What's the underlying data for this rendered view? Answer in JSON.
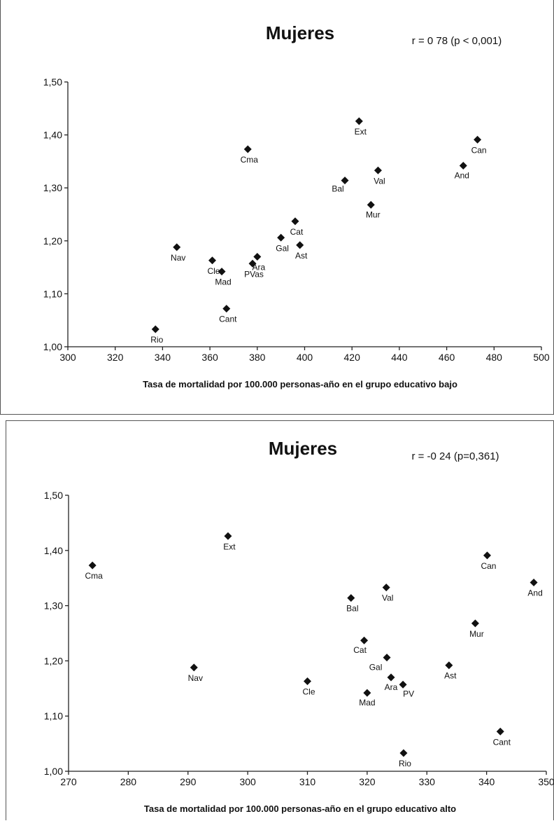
{
  "chart_data": [
    {
      "type": "scatter",
      "title": "Mujeres",
      "annotation": "r = 0 78 (p < 0,001)",
      "xlabel": "Tasa de mortalidad por 100.000 personas-año en el grupo educativo bajo",
      "ylabel": "",
      "xlim": [
        300,
        500
      ],
      "ylim": [
        1.0,
        1.5
      ],
      "x_ticks": [
        "300",
        "320",
        "340",
        "360",
        "380",
        "400",
        "420",
        "440",
        "460",
        "480",
        "500"
      ],
      "y_ticks": [
        "1,00",
        "1,10",
        "1,20",
        "1,30",
        "1,40",
        "1,50"
      ],
      "grid": false,
      "marker": "diamond",
      "points": [
        {
          "label": "Rio",
          "x": 337,
          "y": 1.033
        },
        {
          "label": "Nav",
          "x": 346,
          "y": 1.188
        },
        {
          "label": "Cle",
          "x": 361,
          "y": 1.163
        },
        {
          "label": "Mad",
          "x": 365,
          "y": 1.142
        },
        {
          "label": "Cant",
          "x": 367,
          "y": 1.072
        },
        {
          "label": "Cma",
          "x": 376,
          "y": 1.373
        },
        {
          "label": "PVas",
          "x": 378,
          "y": 1.157
        },
        {
          "label": "Ara",
          "x": 380,
          "y": 1.17
        },
        {
          "label": "Gal",
          "x": 390,
          "y": 1.206
        },
        {
          "label": "Cat",
          "x": 396,
          "y": 1.237
        },
        {
          "label": "Ast",
          "x": 398,
          "y": 1.192
        },
        {
          "label": "Bal",
          "x": 417,
          "y": 1.314
        },
        {
          "label": "Ext",
          "x": 423,
          "y": 1.426
        },
        {
          "label": "Mur",
          "x": 428,
          "y": 1.268
        },
        {
          "label": "Val",
          "x": 431,
          "y": 1.333
        },
        {
          "label": "And",
          "x": 467,
          "y": 1.342
        },
        {
          "label": "Can",
          "x": 473,
          "y": 1.391
        }
      ]
    },
    {
      "type": "scatter",
      "title": "Mujeres",
      "annotation": "r = -0 24 (p=0,361)",
      "xlabel": "Tasa de mortalidad por 100.000 personas-año en el grupo educativo alto",
      "ylabel": "",
      "xlim": [
        270,
        350
      ],
      "ylim": [
        1.0,
        1.5
      ],
      "x_ticks": [
        "270",
        "280",
        "290",
        "300",
        "310",
        "320",
        "330",
        "340",
        "350"
      ],
      "y_ticks": [
        "1,00",
        "1,10",
        "1,20",
        "1,30",
        "1,40",
        "1,50"
      ],
      "grid": false,
      "marker": "diamond",
      "points": [
        {
          "label": "Cma",
          "x": 274,
          "y": 1.373
        },
        {
          "label": "Nav",
          "x": 291,
          "y": 1.188
        },
        {
          "label": "Ext",
          "x": 296.7,
          "y": 1.426
        },
        {
          "label": "Cle",
          "x": 310,
          "y": 1.163
        },
        {
          "label": "Bal",
          "x": 317.3,
          "y": 1.314
        },
        {
          "label": "Cat",
          "x": 319.5,
          "y": 1.237
        },
        {
          "label": "Mad",
          "x": 320,
          "y": 1.142
        },
        {
          "label": "Val",
          "x": 323.2,
          "y": 1.333
        },
        {
          "label": "Gal",
          "x": 323.3,
          "y": 1.206
        },
        {
          "label": "Ara",
          "x": 324,
          "y": 1.17
        },
        {
          "label": "PV",
          "x": 326,
          "y": 1.157
        },
        {
          "label": "Rio",
          "x": 326.1,
          "y": 1.033
        },
        {
          "label": "Ast",
          "x": 333.7,
          "y": 1.192
        },
        {
          "label": "Mur",
          "x": 338.1,
          "y": 1.268
        },
        {
          "label": "Can",
          "x": 340.1,
          "y": 1.391
        },
        {
          "label": "Cant",
          "x": 342.3,
          "y": 1.072
        },
        {
          "label": "And",
          "x": 347.9,
          "y": 1.342
        }
      ]
    }
  ]
}
